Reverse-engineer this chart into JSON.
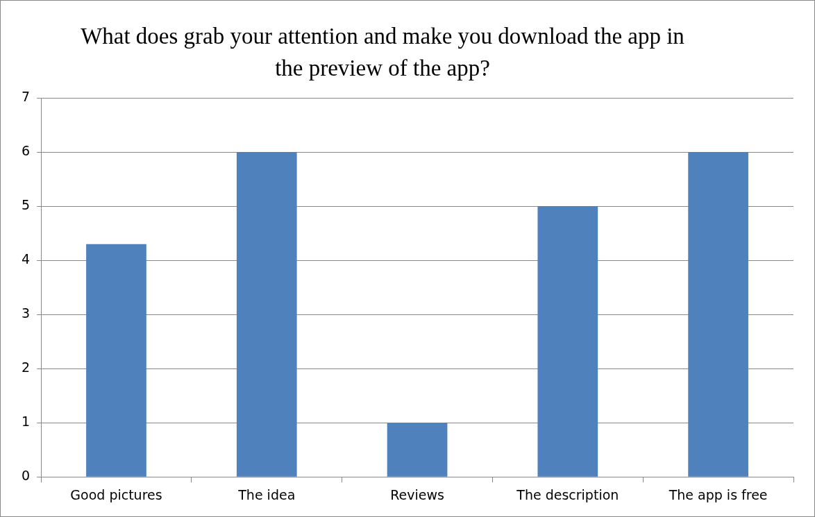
{
  "chart_data": {
    "type": "bar",
    "title": "What does grab your attention and make you download the app in the preview of  the app?",
    "categories": [
      "Good pictures",
      "The idea",
      "Reviews",
      "The description",
      "The app is free"
    ],
    "values": [
      4.3,
      6,
      1,
      5,
      6
    ],
    "color": "#4f81bd",
    "ylim": [
      0,
      7
    ],
    "yticks": [
      0,
      1,
      2,
      3,
      4,
      5,
      6,
      7
    ],
    "grid": "y",
    "legend": false
  }
}
